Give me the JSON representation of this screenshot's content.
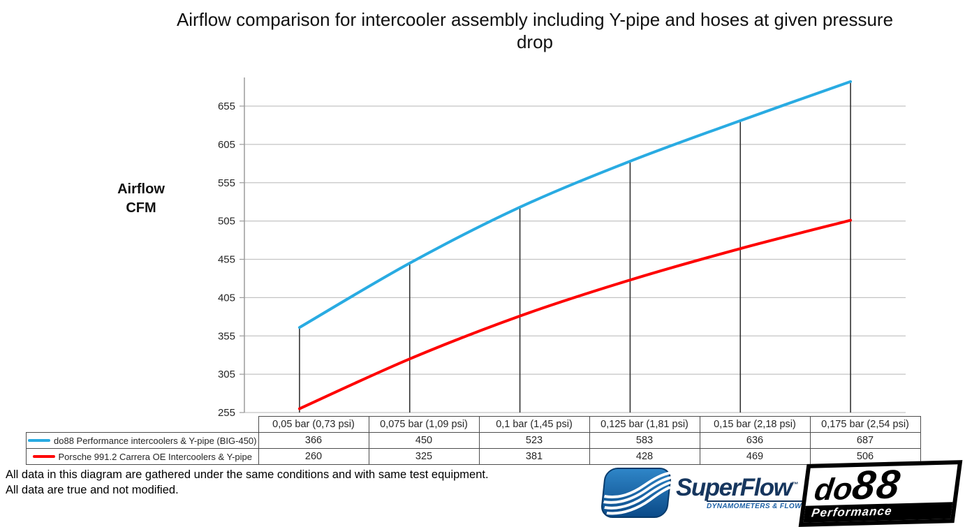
{
  "chart_data": {
    "type": "line",
    "title": "Airflow comparison for intercooler assembly including Y-pipe and hoses at given pressure drop",
    "ylabel_line1": "Airflow",
    "ylabel_line2": "CFM",
    "categories": [
      "0,05 bar (0,73 psi)",
      "0,075 bar (1,09 psi)",
      "0,1 bar (1,45 psi)",
      "0,125 bar (1,81 psi)",
      "0,15 bar (2,18 psi)",
      "0,175 bar (2,54 psi)"
    ],
    "series": [
      {
        "name": "do88 Performance intercoolers & Y-pipe (BIG-450)",
        "color": "#29ABE2",
        "values": [
          366,
          450,
          523,
          583,
          636,
          687
        ]
      },
      {
        "name": "Porsche 991.2 Carrera OE Intercoolers & Y-pipe",
        "color": "#FE0000",
        "values": [
          260,
          325,
          381,
          428,
          469,
          506
        ]
      }
    ],
    "yticks": [
      255,
      305,
      355,
      405,
      455,
      505,
      555,
      605,
      655
    ],
    "ylim": [
      255,
      693
    ],
    "grid": "horizontal",
    "legend_position": "bottom-table",
    "drop_lines_from_series": 0,
    "colors": {
      "gridline": "#C4C4C4",
      "axis": "#9B9B9B",
      "drop_line": "#333333",
      "tick_label": "#262626"
    }
  },
  "footer": {
    "line1": "All data in this diagram are gathered under the same conditions and with same test equipment.",
    "line2": "All data are true and not modified."
  },
  "logos": {
    "superflow": {
      "name": "SuperFlow",
      "trademark": "™",
      "tagline": "DYNAMOMETERS & FLOWBENCHES",
      "brand_navy": "#16365E",
      "brand_blue": "#1B5FA6"
    },
    "do88": {
      "name_do": "do",
      "name_88": "88",
      "tagline": "Performance"
    }
  }
}
